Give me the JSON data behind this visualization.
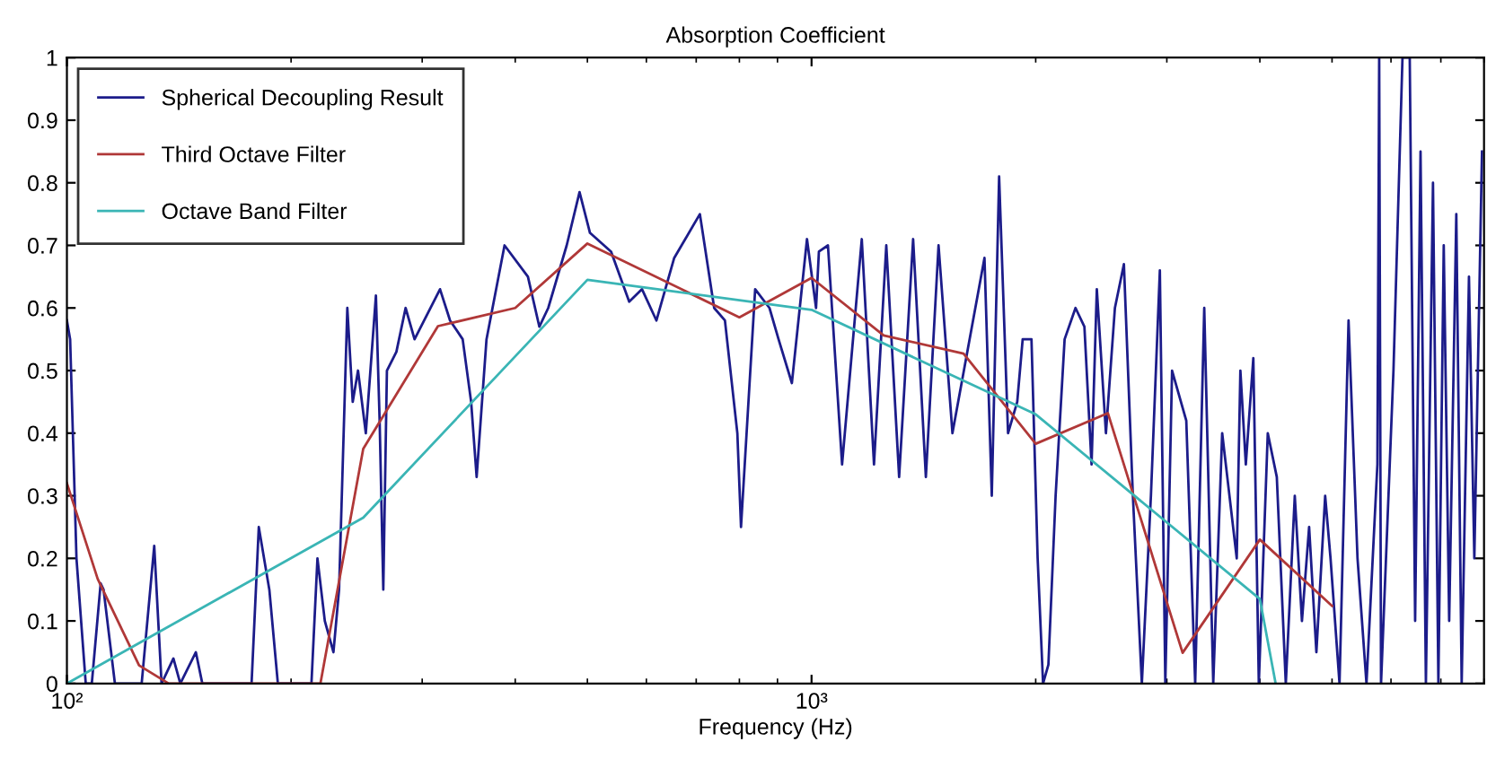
{
  "chart_data": {
    "type": "line",
    "title": "Absorption Coefficient",
    "xlabel": "Frequency (Hz)",
    "log": "x",
    "xlim": [
      100,
      8000
    ],
    "ylim": [
      0,
      1
    ],
    "xticks": [
      {
        "value": 100,
        "label": "10²"
      },
      {
        "value": 1000,
        "label": "10³"
      }
    ],
    "yticks": [
      0,
      0.1,
      0.2,
      0.3,
      0.4,
      0.5,
      0.6,
      0.7,
      0.8,
      0.9,
      1
    ],
    "grid": false,
    "legend": "top left",
    "marker": "none",
    "line_style": "solid",
    "series": [
      {
        "name": "Spherical Decoupling Result",
        "color": "#1c1c8a",
        "x": [
          100,
          101,
          103,
          106,
          108,
          111,
          112,
          116,
          126,
          131,
          134,
          139,
          142,
          149,
          152,
          177,
          181,
          187,
          192,
          213,
          217,
          222,
          228,
          232,
          238,
          242,
          246,
          252,
          260,
          263,
          266,
          269,
          277,
          285,
          293,
          317,
          327,
          340,
          349,
          355,
          366,
          387,
          416,
          431,
          443,
          469,
          488,
          504,
          538,
          569,
          592,
          619,
          654,
          708,
          740,
          765,
          795,
          804,
          840,
          878,
          903,
          941,
          986,
          1014,
          1023,
          1052,
          1099,
          1168,
          1213,
          1260,
          1311,
          1369,
          1424,
          1481,
          1546,
          1707,
          1746,
          1786,
          1836,
          1889,
          1921,
          1974,
          2012,
          2046,
          2080,
          2127,
          2187,
          2262,
          2325,
          2377,
          2416,
          2485,
          2555,
          2627,
          2701,
          2777,
          2856,
          2936,
          2986,
          3049,
          3186,
          3275,
          3368,
          3463,
          3560,
          3724,
          3766,
          3830,
          3920,
          3987,
          4099,
          4215,
          4334,
          4456,
          4556,
          4658,
          4764,
          4895,
          4977,
          5117,
          5262,
          5410,
          5562,
          5753,
          5785,
          5818,
          6046,
          6217,
          6358,
          6465,
          6574,
          6684,
          6832,
          6947,
          7063,
          7183,
          7343,
          7466,
          7636,
          7764,
          7950
        ],
        "values": [
          0.58,
          0.55,
          0.2,
          0,
          0,
          0.16,
          0.15,
          0,
          0,
          0.22,
          0,
          0.04,
          0,
          0.05,
          0,
          0,
          0.25,
          0.15,
          0,
          0,
          0.2,
          0.1,
          0.05,
          0.15,
          0.6,
          0.45,
          0.5,
          0.4,
          0.62,
          0.42,
          0.15,
          0.5,
          0.53,
          0.6,
          0.55,
          0.63,
          0.58,
          0.55,
          0.45,
          0.33,
          0.55,
          0.7,
          0.65,
          0.57,
          0.6,
          0.7,
          0.785,
          0.72,
          0.69,
          0.61,
          0.63,
          0.58,
          0.68,
          0.75,
          0.6,
          0.58,
          0.4,
          0.25,
          0.63,
          0.6,
          0.55,
          0.48,
          0.71,
          0.6,
          0.69,
          0.7,
          0.35,
          0.71,
          0.35,
          0.7,
          0.33,
          0.71,
          0.33,
          0.7,
          0.4,
          0.68,
          0.3,
          0.81,
          0.4,
          0.45,
          0.55,
          0.55,
          0.2,
          0,
          0.03,
          0.3,
          0.55,
          0.6,
          0.57,
          0.35,
          0.63,
          0.4,
          0.6,
          0.67,
          0.3,
          0,
          0.3,
          0.66,
          0,
          0.5,
          0.42,
          0,
          0.6,
          0,
          0.4,
          0.2,
          0.5,
          0.35,
          0.52,
          0,
          0.4,
          0.33,
          0,
          0.3,
          0.1,
          0.25,
          0.05,
          0.3,
          0.2,
          0,
          0.58,
          0.2,
          0,
          0.35,
          1,
          0,
          0.5,
          1,
          1,
          0.1,
          0.85,
          0,
          0.8,
          0,
          0.7,
          0.1,
          0.75,
          0,
          0.65,
          0.2,
          0.85
        ]
      },
      {
        "name": "Third Octave Filter",
        "color": "#b03838",
        "x": [
          100,
          110,
          125,
          137,
          160,
          200,
          219,
          250,
          315,
          400,
          500,
          800,
          1000,
          1250,
          1600,
          2000,
          2500,
          3150,
          4000,
          5000
        ],
        "values": [
          0.32,
          0.167,
          0.029,
          0,
          0,
          0,
          0,
          0.375,
          0.571,
          0.6,
          0.703,
          0.585,
          0.648,
          0.556,
          0.527,
          0.383,
          0.432,
          0.049,
          0.23,
          0.124
        ]
      },
      {
        "name": "Octave Band Filter",
        "color": "#3ab5b5",
        "x": [
          100,
          250,
          500,
          1000,
          2000,
          4000,
          4200
        ],
        "values": [
          0,
          0.265,
          0.645,
          0.597,
          0.43,
          0.135,
          0
        ]
      }
    ]
  }
}
